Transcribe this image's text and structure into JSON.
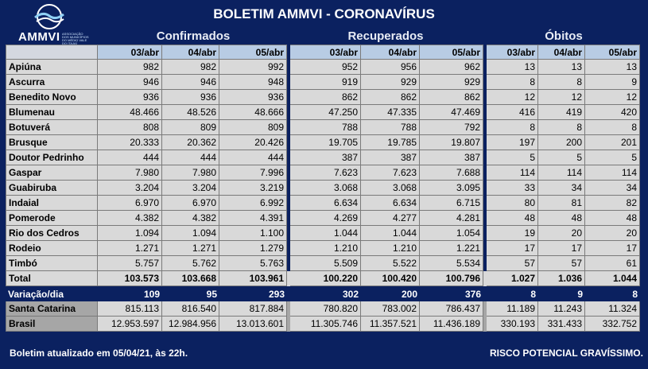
{
  "header": {
    "logo_text": "AMMVI",
    "logo_sub": "ASSOCIAÇÃO DOS MUNICÍPIOS DO MÉDIO VALE DO ITAJAÍ",
    "title": "BOLETIM AMMVI - CORONAVÍRUS",
    "groups": [
      "Confirmados",
      "Recuperados",
      "Óbitos"
    ]
  },
  "columns": {
    "confirmados": [
      "03/abr",
      "04/abr",
      "05/abr"
    ],
    "recuperados": [
      "03/abr",
      "04/abr",
      "05/abr"
    ],
    "obitos": [
      "03/abr",
      "04/abr",
      "05/abr"
    ]
  },
  "rows": [
    {
      "name": "Apiúna",
      "c": [
        "982",
        "982",
        "992"
      ],
      "r": [
        "952",
        "956",
        "962"
      ],
      "o": [
        "13",
        "13",
        "13"
      ]
    },
    {
      "name": "Ascurra",
      "c": [
        "946",
        "946",
        "948"
      ],
      "r": [
        "919",
        "929",
        "929"
      ],
      "o": [
        "8",
        "8",
        "9"
      ]
    },
    {
      "name": "Benedito Novo",
      "c": [
        "936",
        "936",
        "936"
      ],
      "r": [
        "862",
        "862",
        "862"
      ],
      "o": [
        "12",
        "12",
        "12"
      ]
    },
    {
      "name": "Blumenau",
      "c": [
        "48.466",
        "48.526",
        "48.666"
      ],
      "r": [
        "47.250",
        "47.335",
        "47.469"
      ],
      "o": [
        "416",
        "419",
        "420"
      ]
    },
    {
      "name": "Botuverá",
      "c": [
        "808",
        "809",
        "809"
      ],
      "r": [
        "788",
        "788",
        "792"
      ],
      "o": [
        "8",
        "8",
        "8"
      ]
    },
    {
      "name": "Brusque",
      "c": [
        "20.333",
        "20.362",
        "20.426"
      ],
      "r": [
        "19.705",
        "19.785",
        "19.807"
      ],
      "o": [
        "197",
        "200",
        "201"
      ]
    },
    {
      "name": "Doutor Pedrinho",
      "c": [
        "444",
        "444",
        "444"
      ],
      "r": [
        "387",
        "387",
        "387"
      ],
      "o": [
        "5",
        "5",
        "5"
      ]
    },
    {
      "name": "Gaspar",
      "c": [
        "7.980",
        "7.980",
        "7.996"
      ],
      "r": [
        "7.623",
        "7.623",
        "7.688"
      ],
      "o": [
        "114",
        "114",
        "114"
      ]
    },
    {
      "name": "Guabiruba",
      "c": [
        "3.204",
        "3.204",
        "3.219"
      ],
      "r": [
        "3.068",
        "3.068",
        "3.095"
      ],
      "o": [
        "33",
        "34",
        "34"
      ]
    },
    {
      "name": "Indaial",
      "c": [
        "6.970",
        "6.970",
        "6.992"
      ],
      "r": [
        "6.634",
        "6.634",
        "6.715"
      ],
      "o": [
        "80",
        "81",
        "82"
      ]
    },
    {
      "name": "Pomerode",
      "c": [
        "4.382",
        "4.382",
        "4.391"
      ],
      "r": [
        "4.269",
        "4.277",
        "4.281"
      ],
      "o": [
        "48",
        "48",
        "48"
      ]
    },
    {
      "name": "Rio dos Cedros",
      "c": [
        "1.094",
        "1.094",
        "1.100"
      ],
      "r": [
        "1.044",
        "1.044",
        "1.054"
      ],
      "o": [
        "19",
        "20",
        "20"
      ]
    },
    {
      "name": "Rodeio",
      "c": [
        "1.271",
        "1.271",
        "1.279"
      ],
      "r": [
        "1.210",
        "1.210",
        "1.221"
      ],
      "o": [
        "17",
        "17",
        "17"
      ]
    },
    {
      "name": "Timbó",
      "c": [
        "5.757",
        "5.762",
        "5.763"
      ],
      "r": [
        "5.509",
        "5.522",
        "5.534"
      ],
      "o": [
        "57",
        "57",
        "61"
      ]
    }
  ],
  "total": {
    "name": "Total",
    "c": [
      "103.573",
      "103.668",
      "103.961"
    ],
    "r": [
      "100.220",
      "100.420",
      "100.796"
    ],
    "o": [
      "1.027",
      "1.036",
      "1.044"
    ]
  },
  "variacao": {
    "name": "Variação/dia",
    "c": [
      "109",
      "95",
      "293"
    ],
    "r": [
      "302",
      "200",
      "376"
    ],
    "o": [
      "8",
      "9",
      "8"
    ]
  },
  "santa_catarina": {
    "name": "Santa Catarina",
    "c": [
      "815.113",
      "816.540",
      "817.884"
    ],
    "r": [
      "780.820",
      "783.002",
      "786.437"
    ],
    "o": [
      "11.189",
      "11.243",
      "11.324"
    ]
  },
  "brasil": {
    "name": "Brasil",
    "c": [
      "12.953.597",
      "12.984.956",
      "13.013.601"
    ],
    "r": [
      "11.305.746",
      "11.357.521",
      "11.436.189"
    ],
    "o": [
      "330.193",
      "331.433",
      "332.752"
    ]
  },
  "footer": {
    "left": "Boletim atualizado em 05/04/21, às 22h.",
    "right": "RISCO POTENCIAL GRAVÍSSIMO."
  },
  "colors": {
    "background": "#0b2160",
    "header_cell": "#b8cce4",
    "cell": "#d9d9d9",
    "state_row": "#a6a6a6"
  }
}
